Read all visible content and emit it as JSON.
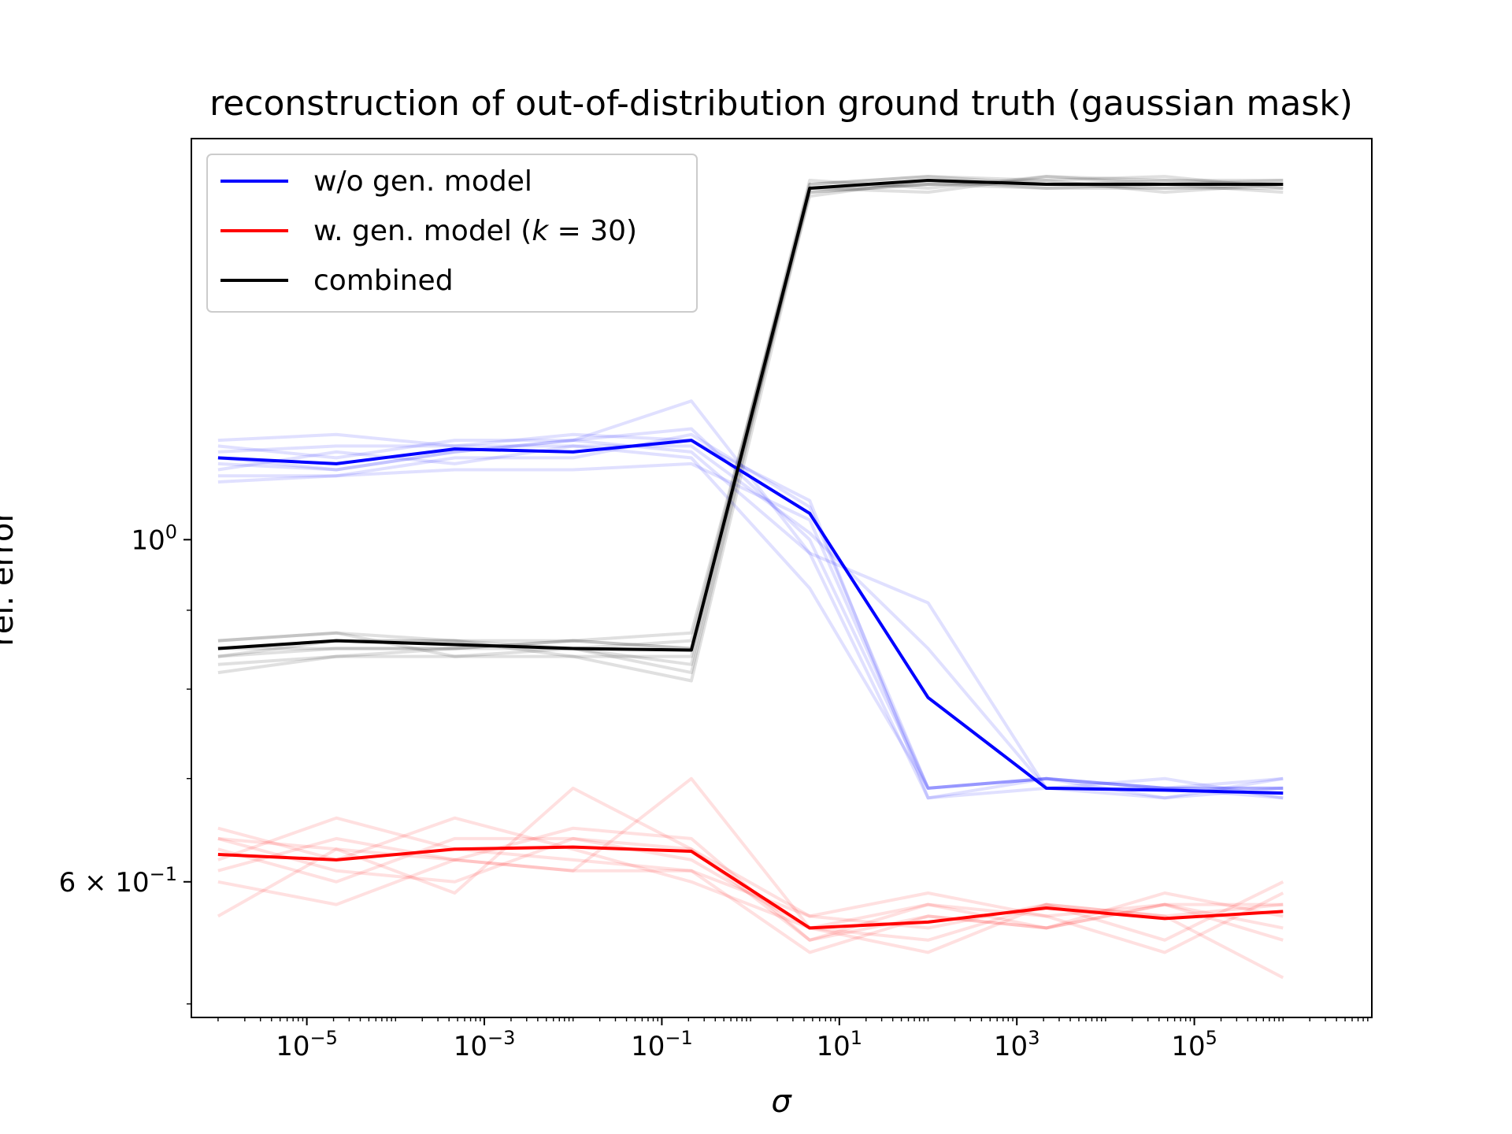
{
  "chart_data": {
    "type": "line",
    "title": "reconstruction of out-of-distribution ground truth (gaussian mask)",
    "xlabel": "σ",
    "ylabel": "rel. error",
    "xscale": "log",
    "yscale": "log",
    "xlim": [
      5e-07,
      10000000.0
    ],
    "ylim": [
      0.49,
      1.82
    ],
    "x_ticks": [
      {
        "value": 1e-05,
        "base": "10",
        "exp": "−5"
      },
      {
        "value": 0.001,
        "base": "10",
        "exp": "−3"
      },
      {
        "value": 0.1,
        "base": "10",
        "exp": "−1"
      },
      {
        "value": 10.0,
        "base": "10",
        "exp": "1"
      },
      {
        "value": 1000.0,
        "base": "10",
        "exp": "3"
      },
      {
        "value": 100000.0,
        "base": "10",
        "exp": "5"
      }
    ],
    "y_ticks": [
      {
        "value": 1.0,
        "base": "10",
        "exp": "0",
        "prefix": ""
      },
      {
        "value": 0.6,
        "base": "10",
        "exp": "−1",
        "prefix": "6 × "
      }
    ],
    "y_minor_ticks": [
      0.5,
      0.7,
      0.8,
      0.9,
      2.0
    ],
    "x": [
      1e-06,
      2.15e-05,
      0.000464,
      0.01,
      0.215,
      4.64,
      100,
      2150,
      46400,
      1000000.0
    ],
    "legend": {
      "placement": "upper left",
      "entries": [
        {
          "label_pre": "w/o gen. model",
          "label_math": "",
          "label_post": "",
          "color": "#0000ff"
        },
        {
          "label_pre": "w. gen. model (",
          "label_math": "k",
          "label_post": " = 30)",
          "color": "#ff0000"
        },
        {
          "label_pre": "combined",
          "label_math": "",
          "label_post": "",
          "color": "#000000"
        }
      ]
    },
    "series": [
      {
        "name": "w/o gen. model",
        "color": "#0000ff",
        "values": [
          1.13,
          1.12,
          1.145,
          1.14,
          1.16,
          1.04,
          0.79,
          0.69,
          0.688,
          0.685
        ],
        "runs": [
          [
            1.16,
            1.17,
            1.15,
            1.17,
            1.16,
            1.06,
            0.68,
            0.7,
            0.69,
            0.69
          ],
          [
            1.12,
            1.11,
            1.14,
            1.16,
            1.23,
            0.98,
            0.68,
            0.69,
            0.7,
            0.68
          ],
          [
            1.15,
            1.13,
            1.16,
            1.16,
            1.14,
            0.98,
            0.91,
            0.69,
            0.68,
            0.69
          ],
          [
            1.1,
            1.1,
            1.13,
            1.13,
            1.17,
            1.05,
            0.69,
            0.7,
            0.69,
            0.68
          ],
          [
            1.14,
            1.15,
            1.15,
            1.15,
            1.13,
            0.93,
            0.69,
            0.7,
            0.69,
            0.69
          ],
          [
            1.11,
            1.14,
            1.12,
            1.15,
            1.15,
            1.01,
            0.85,
            0.69,
            0.69,
            0.7
          ],
          [
            1.13,
            1.11,
            1.14,
            1.16,
            1.18,
            1.0,
            0.69,
            0.7,
            0.69,
            0.69
          ],
          [
            1.09,
            1.1,
            1.11,
            1.11,
            1.12,
            1.03,
            0.69,
            0.7,
            0.68,
            0.7
          ]
        ]
      },
      {
        "name": "w. gen. model (k = 30)",
        "color": "#ff0000",
        "values": [
          0.625,
          0.62,
          0.63,
          0.632,
          0.628,
          0.56,
          0.565,
          0.577,
          0.568,
          0.574
        ],
        "runs": [
          [
            0.63,
            0.6,
            0.64,
            0.64,
            0.62,
            0.56,
            0.58,
            0.57,
            0.58,
            0.56
          ],
          [
            0.64,
            0.63,
            0.62,
            0.61,
            0.7,
            0.56,
            0.54,
            0.58,
            0.57,
            0.58
          ],
          [
            0.57,
            0.63,
            0.59,
            0.69,
            0.63,
            0.55,
            0.57,
            0.56,
            0.58,
            0.55
          ],
          [
            0.62,
            0.66,
            0.63,
            0.62,
            0.61,
            0.57,
            0.59,
            0.57,
            0.54,
            0.59
          ],
          [
            0.65,
            0.62,
            0.66,
            0.63,
            0.6,
            0.56,
            0.55,
            0.58,
            0.57,
            0.52
          ],
          [
            0.61,
            0.64,
            0.62,
            0.65,
            0.64,
            0.55,
            0.58,
            0.56,
            0.59,
            0.57
          ],
          [
            0.64,
            0.61,
            0.6,
            0.64,
            0.63,
            0.57,
            0.56,
            0.58,
            0.55,
            0.6
          ],
          [
            0.6,
            0.58,
            0.62,
            0.61,
            0.61,
            0.54,
            0.57,
            0.56,
            0.58,
            0.58
          ]
        ]
      },
      {
        "name": "combined",
        "color": "#000000",
        "values": [
          0.85,
          0.86,
          0.855,
          0.85,
          0.848,
          1.69,
          1.71,
          1.7,
          1.7,
          1.7
        ],
        "runs": [
          [
            0.86,
            0.87,
            0.86,
            0.86,
            0.87,
            1.68,
            1.7,
            1.71,
            1.72,
            1.69
          ],
          [
            0.84,
            0.85,
            0.85,
            0.85,
            0.82,
            1.7,
            1.72,
            1.7,
            1.69,
            1.7
          ],
          [
            0.85,
            0.86,
            0.86,
            0.84,
            0.84,
            1.69,
            1.68,
            1.72,
            1.71,
            1.71
          ],
          [
            0.83,
            0.84,
            0.85,
            0.86,
            0.85,
            1.67,
            1.71,
            1.69,
            1.7,
            1.68
          ],
          [
            0.86,
            0.87,
            0.84,
            0.85,
            0.86,
            1.7,
            1.72,
            1.71,
            1.68,
            1.7
          ],
          [
            0.84,
            0.86,
            0.86,
            0.85,
            0.83,
            1.69,
            1.7,
            1.7,
            1.71,
            1.7
          ],
          [
            0.85,
            0.85,
            0.85,
            0.86,
            0.85,
            1.71,
            1.69,
            1.72,
            1.7,
            1.71
          ],
          [
            0.82,
            0.84,
            0.84,
            0.84,
            0.81,
            1.68,
            1.7,
            1.69,
            1.69,
            1.69
          ]
        ]
      }
    ]
  }
}
